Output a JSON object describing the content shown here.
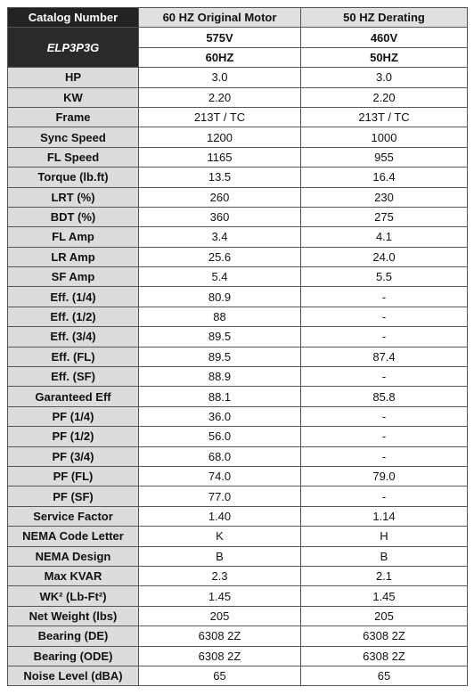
{
  "header": {
    "columns": [
      "Catalog Number",
      "60 HZ Original Motor",
      "50 HZ Derating"
    ]
  },
  "model": "ELP3P3G",
  "voltage": [
    "575V",
    "460V"
  ],
  "frequency": [
    "60HZ",
    "50HZ"
  ],
  "rows": [
    [
      "HP",
      "3.0",
      "3.0"
    ],
    [
      "KW",
      "2.20",
      "2.20"
    ],
    [
      "Frame",
      "213T / TC",
      "213T / TC"
    ],
    [
      "Sync Speed",
      "1200",
      "1000"
    ],
    [
      "FL Speed",
      "1165",
      "955"
    ],
    [
      "Torque (lb.ft)",
      "13.5",
      "16.4"
    ],
    [
      "LRT (%)",
      "260",
      "230"
    ],
    [
      "BDT (%)",
      "360",
      "275"
    ],
    [
      "FL Amp",
      "3.4",
      "4.1"
    ],
    [
      "LR Amp",
      "25.6",
      "24.0"
    ],
    [
      "SF Amp",
      "5.4",
      "5.5"
    ],
    [
      "Eff. (1/4)",
      "80.9",
      "-"
    ],
    [
      "Eff. (1/2)",
      "88",
      "-"
    ],
    [
      "Eff. (3/4)",
      "89.5",
      "-"
    ],
    [
      "Eff. (FL)",
      "89.5",
      "87.4"
    ],
    [
      "Eff. (SF)",
      "88.9",
      "-"
    ],
    [
      "Garanteed Eff",
      "88.1",
      "85.8"
    ],
    [
      "PF (1/4)",
      "36.0",
      "-"
    ],
    [
      "PF (1/2)",
      "56.0",
      "-"
    ],
    [
      "PF (3/4)",
      "68.0",
      "-"
    ],
    [
      "PF (FL)",
      "74.0",
      "79.0"
    ],
    [
      "PF (SF)",
      "77.0",
      "-"
    ],
    [
      "Service Factor",
      "1.40",
      "1.14"
    ],
    [
      "NEMA Code Letter",
      "K",
      "H"
    ],
    [
      "NEMA Design",
      "B",
      "B"
    ],
    [
      "Max KVAR",
      "2.3",
      "2.1"
    ],
    [
      "WK² (Lb-Ft²)",
      "1.45",
      "1.45"
    ],
    [
      "Net Weight (lbs)",
      "205",
      "205"
    ],
    [
      "Bearing (DE)",
      "6308 2Z",
      "6308 2Z"
    ],
    [
      "Bearing (ODE)",
      "6308 2Z",
      "6308 2Z"
    ],
    [
      "Noise Level (dBA)",
      "65",
      "65"
    ]
  ]
}
